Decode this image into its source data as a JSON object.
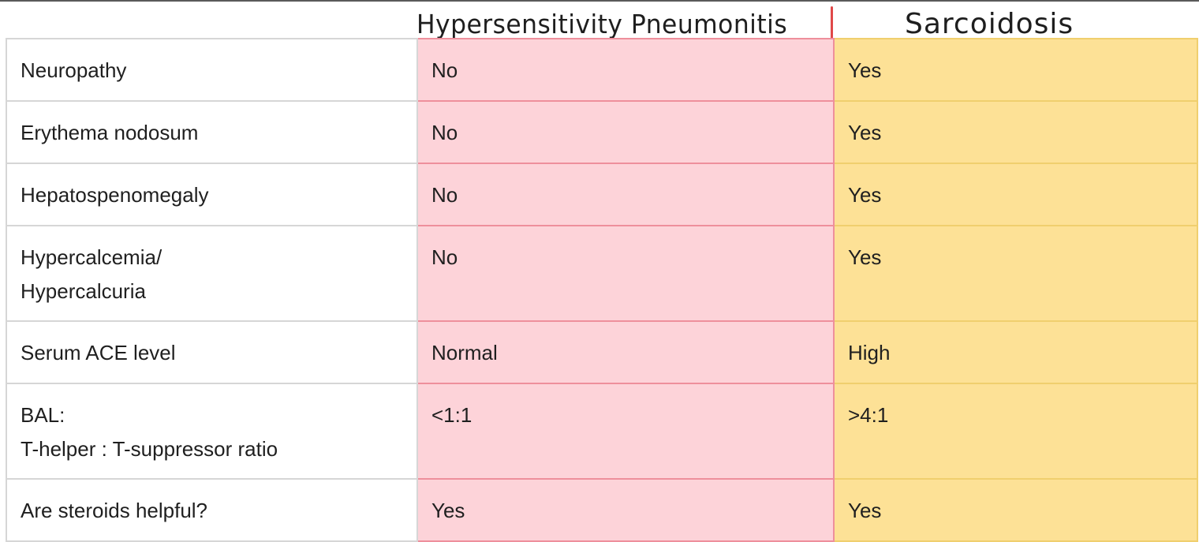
{
  "headers": {
    "hypersensitivity": "Hypersensitivity Pneumonitis",
    "sarcoidosis": "Sarcoidosis"
  },
  "rows": [
    {
      "label": [
        "Neuropathy"
      ],
      "hp": "No",
      "sarcoidosis": "Yes"
    },
    {
      "label": [
        "Erythema nodosum"
      ],
      "hp": "No",
      "sarcoidosis": "Yes"
    },
    {
      "label": [
        "Hepatospenomegaly"
      ],
      "hp": "No",
      "sarcoidosis": "Yes"
    },
    {
      "label": [
        "Hypercalcemia/",
        "Hypercalcuria"
      ],
      "hp": "No",
      "sarcoidosis": "Yes"
    },
    {
      "label": [
        "Serum ACE level"
      ],
      "hp": "Normal",
      "sarcoidosis": "High"
    },
    {
      "label": [
        "BAL:",
        "T-helper : T-suppressor ratio"
      ],
      "hp": "<1:1",
      "sarcoidosis": ">4:1"
    },
    {
      "label": [
        "Are steroids helpful?"
      ],
      "hp": "Yes",
      "sarcoidosis": "Yes"
    }
  ],
  "colors": {
    "hp_fill": "#fdd3d9",
    "hp_border": "#ee8f9c",
    "sarcoidosis_fill": "#fde196",
    "sarcoidosis_border": "#f0cf6e",
    "accent_mark": "#e04848"
  }
}
